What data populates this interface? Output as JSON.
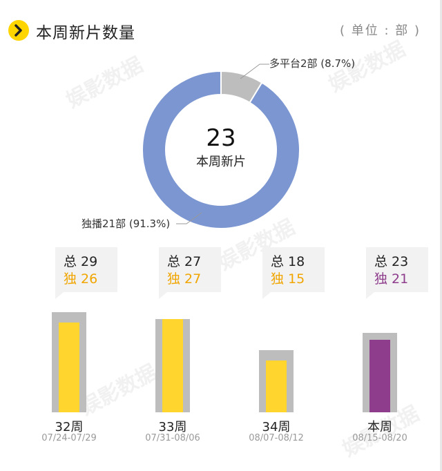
{
  "header": {
    "title": "本周新片数量",
    "unit": "( 单位 : 部 )",
    "icon": "chevron-right-icon",
    "accent": "#FFD500"
  },
  "donut": {
    "center_value": "23",
    "center_label": "本周新片",
    "labels": {
      "multi": "多平台2部 (8.7%)",
      "excl": "独播21部 (91.3%)"
    }
  },
  "weeks": [
    {
      "week": "32周",
      "dates": "07/24-07/29",
      "total_label": "总 29",
      "excl_label": "独 26"
    },
    {
      "week": "33周",
      "dates": "07/31-08/06",
      "total_label": "总 27",
      "excl_label": "独 27"
    },
    {
      "week": "34周",
      "dates": "08/07-08/12",
      "total_label": "总 18",
      "excl_label": "独 15"
    },
    {
      "week": "本周",
      "dates": "08/15-08/20",
      "total_label": "总 23",
      "excl_label": "独 21"
    }
  ],
  "chart_data": [
    {
      "type": "pie",
      "categories": [
        "多平台",
        "独播"
      ],
      "values": [
        2,
        21
      ],
      "percent": [
        8.7,
        91.3
      ],
      "colors": [
        "#BDBDBD",
        "#7B96D0"
      ]
    },
    {
      "type": "bar",
      "categories": [
        "32周",
        "33周",
        "34周",
        "本周"
      ],
      "series": [
        {
          "values": [
            29,
            27,
            18,
            23
          ]
        },
        {
          "values": [
            26,
            27,
            15,
            21
          ]
        }
      ],
      "colors": {
        "total": "#BDBDBD",
        "excl": "#FFD52E",
        "excl_current": "#8E3C8C",
        "label_excl": "#F0A500",
        "label_excl_current": "#8E3C8C"
      }
    }
  ],
  "watermark": "娱影数据"
}
